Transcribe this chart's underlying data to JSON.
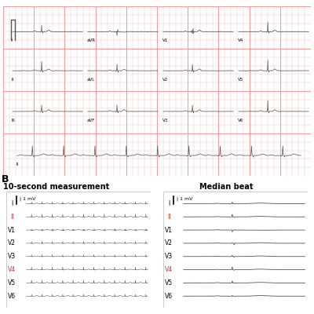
{
  "title_A": "",
  "title_B": "B",
  "section_left_title": "10-second measurement",
  "section_right_title": "Median beat",
  "ecg_bg_color": "#fce8e8",
  "ecg_grid_minor_color": "#f5c0c0",
  "ecg_grid_major_color": "#f0a0a0",
  "line_color": "#555555",
  "lead_labels_left": [
    "I",
    "II",
    "V1",
    "V2",
    "V3",
    "V4",
    "V5",
    "V6"
  ],
  "lead_labels_right": [
    "I",
    "II",
    "V1",
    "V2",
    "V3",
    "V4",
    "V5",
    "V6"
  ],
  "lead_labels_top": [
    "I",
    "aVR",
    "V1",
    "V4"
  ],
  "lead_labels_mid1": [
    "II",
    "aVL",
    "V2",
    "V5"
  ],
  "lead_labels_mid2": [
    "III",
    "aVF",
    "V3",
    "V6"
  ],
  "lead_labels_bot": [
    "II"
  ],
  "label_II_color": "#cc3333",
  "label_V4_color": "#cc3333",
  "scale_label": "| 1 mV",
  "bg_white": "#ffffff",
  "border_color": "#cccccc"
}
